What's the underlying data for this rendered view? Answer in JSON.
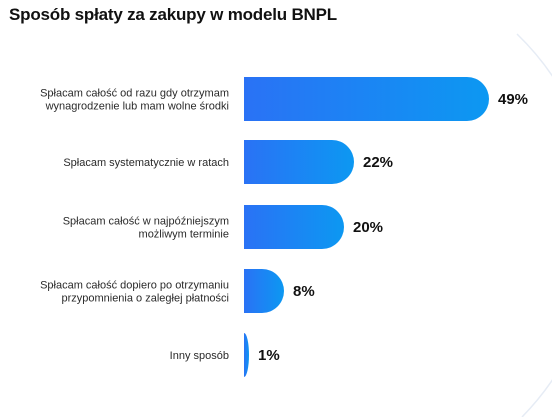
{
  "chart_data": {
    "type": "bar",
    "orientation": "horizontal",
    "title": "Sposób spłaty za zakupy w modelu BNPL",
    "categories": [
      [
        "Spłacam całość od razu gdy otrzymam",
        "wynagrodzenie lub mam wolne środki"
      ],
      [
        "Spłacam systematycznie w ratach"
      ],
      [
        "Spłacam całość w najpóźniejszym",
        "możliwym terminie"
      ],
      [
        "Spłacam całość dopiero po otrzymaniu",
        "przypomnienia o zaległej płatności"
      ],
      [
        "Inny sposób"
      ]
    ],
    "values": [
      49,
      22,
      20,
      8,
      1
    ],
    "value_labels": [
      "49%",
      "22%",
      "20%",
      "8%",
      "1%"
    ],
    "unit": "%",
    "colors": {
      "bar_left": "#2a72f5",
      "bar_right": "#0c98f2",
      "decor_arc": "#e6ecf5"
    },
    "grid": false,
    "legend": "none"
  }
}
